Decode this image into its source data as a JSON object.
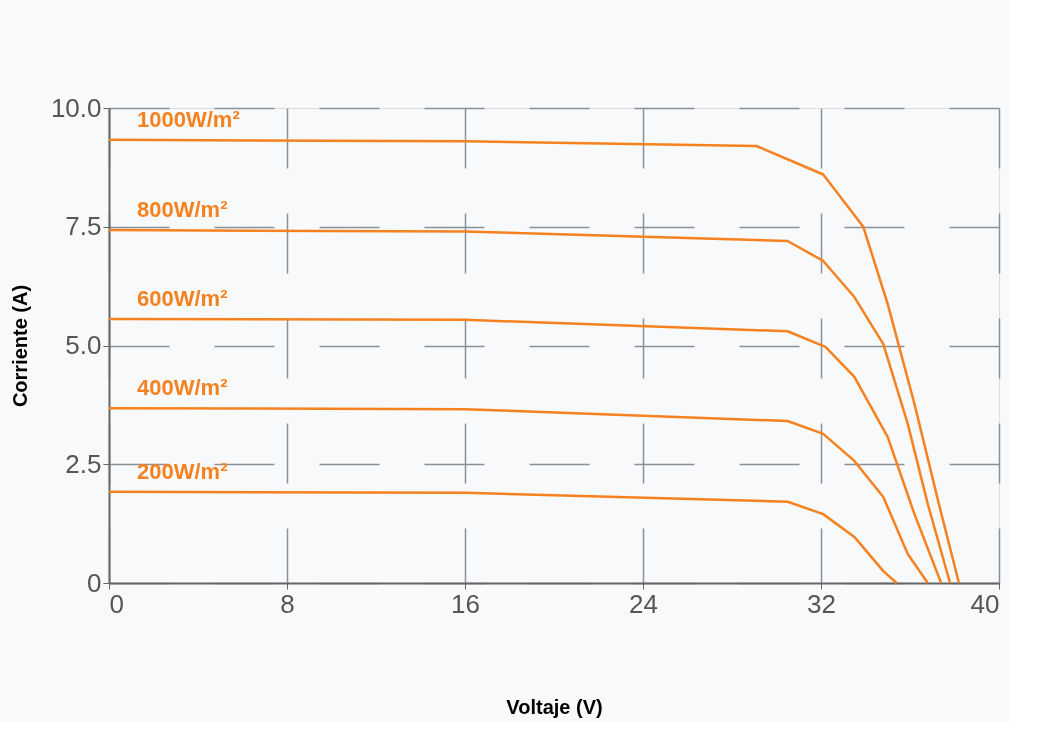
{
  "chart_data": {
    "type": "line",
    "xlabel": "Voltaje (V)",
    "ylabel": "Corriente (A)",
    "xlim": [
      0,
      40
    ],
    "xticks": [
      0,
      8,
      16,
      24,
      32,
      40
    ],
    "ylim": [
      0,
      10
    ],
    "yticks": [
      {
        "value": 0,
        "label": "0"
      },
      {
        "value": 2.5,
        "label": "2.5"
      },
      {
        "value": 5,
        "label": "5.0"
      },
      {
        "value": 7.5,
        "label": "7.5"
      },
      {
        "value": 10,
        "label": "10.0"
      }
    ],
    "grid": true,
    "marker": "none",
    "line_style": "solid",
    "series": [
      {
        "name": "1000W/m²",
        "color": "#f5821f",
        "x": [
          0,
          16,
          29.1,
          32.1,
          33.9,
          35.0,
          36.2,
          37.3,
          38.2
        ],
        "values": [
          9.33,
          9.3,
          9.2,
          8.6,
          7.5,
          5.87,
          3.77,
          1.66,
          0
        ]
      },
      {
        "name": "800W/m²",
        "color": "#f5821f",
        "x": [
          0,
          16,
          30.5,
          32.1,
          33.5,
          34.8,
          35.9,
          36.8,
          37.8
        ],
        "values": [
          7.43,
          7.4,
          7.2,
          6.78,
          6.02,
          5.03,
          3.35,
          1.66,
          0
        ]
      },
      {
        "name": "600W/m²",
        "color": "#f5821f",
        "x": [
          0,
          16,
          30.5,
          32.2,
          33.5,
          35.0,
          36.2,
          37.4
        ],
        "values": [
          5.56,
          5.54,
          5.3,
          4.97,
          4.34,
          3.07,
          1.45,
          0
        ]
      },
      {
        "name": "400W/m²",
        "color": "#f5821f",
        "x": [
          0,
          16,
          30.5,
          32.1,
          33.5,
          34.8,
          35.9,
          36.8
        ],
        "values": [
          3.68,
          3.66,
          3.41,
          3.14,
          2.57,
          1.81,
          0.61,
          0
        ]
      },
      {
        "name": "200W/m²",
        "color": "#f5821f",
        "x": [
          0,
          16,
          30.5,
          32.1,
          33.5,
          34.8,
          35.4
        ],
        "values": [
          1.92,
          1.9,
          1.71,
          1.45,
          0.97,
          0.25,
          0
        ]
      }
    ]
  }
}
